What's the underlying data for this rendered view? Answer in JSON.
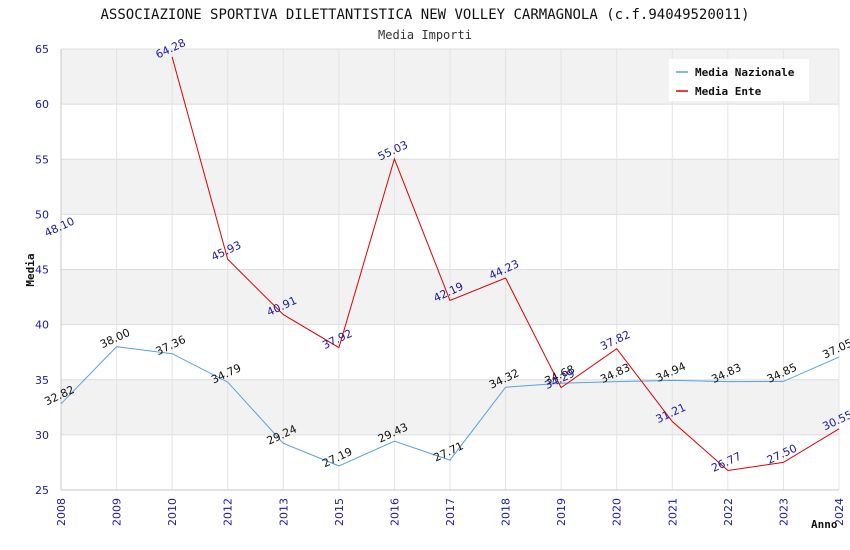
{
  "chart_data": {
    "type": "line",
    "title": "ASSOCIAZIONE SPORTIVA DILETTANTISTICA NEW VOLLEY CARMAGNOLA (c.f.94049520011)",
    "subtitle": "Media Importi",
    "xlabel": "Anno",
    "ylabel": "Media",
    "ylim": [
      25,
      65
    ],
    "yticks": [
      25,
      30,
      35,
      40,
      45,
      50,
      55,
      60,
      65
    ],
    "categories": [
      "2008",
      "2009",
      "2010",
      "2012",
      "2013",
      "2015",
      "2016",
      "2017",
      "2018",
      "2019",
      "2020",
      "2021",
      "2022",
      "2023",
      "2024"
    ],
    "legend_position": "top-right",
    "series": [
      {
        "name": "Media Nazionale",
        "color": "#5aa0e0",
        "label_color": "#111111",
        "values": [
          32.82,
          38.0,
          37.36,
          34.79,
          29.24,
          27.19,
          29.43,
          27.71,
          34.32,
          34.68,
          34.83,
          34.94,
          34.83,
          34.85,
          37.05
        ],
        "labels": [
          "32.82",
          "38.00",
          "37.36",
          "34.79",
          "29.24",
          "27.19",
          "29.43",
          "27.71",
          "34.32",
          "34.68",
          "34.83",
          "34.94",
          "34.83",
          "34.85",
          "37.05"
        ]
      },
      {
        "name": "Media Ente",
        "color": "#e00000",
        "label_color": "#1a1aa0",
        "values": [
          48.1,
          null,
          64.28,
          45.93,
          40.91,
          37.92,
          55.03,
          42.19,
          44.23,
          34.29,
          37.82,
          31.21,
          26.77,
          27.5,
          30.55
        ],
        "labels": [
          "48.10",
          null,
          "64.28",
          "45.93",
          "40.91",
          "37.92",
          "55.03",
          "42.19",
          "44.23",
          "34.29",
          "37.82",
          "31.21",
          "26.77",
          "27.50",
          "30.55"
        ]
      }
    ]
  }
}
